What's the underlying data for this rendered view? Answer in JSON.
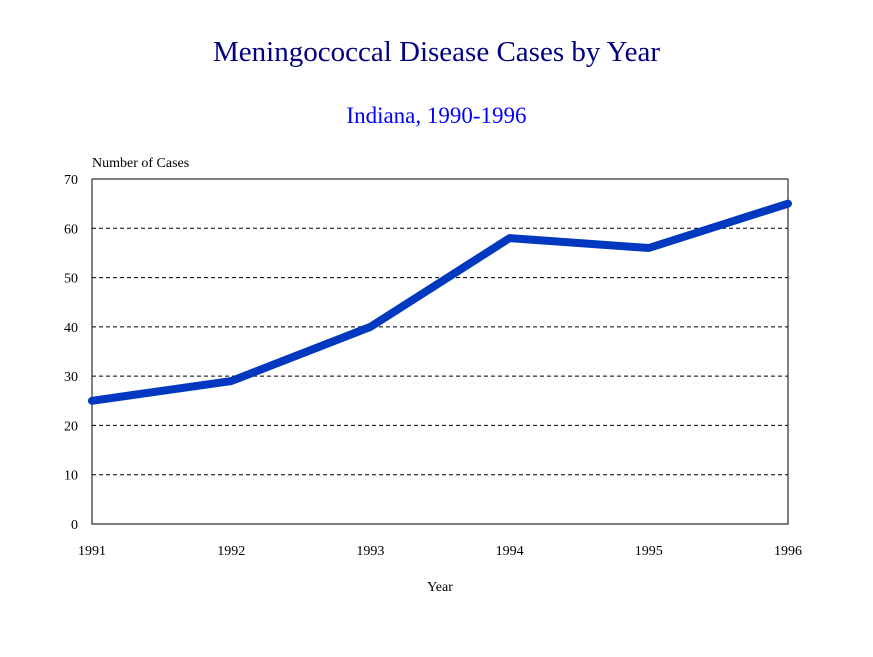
{
  "chart_data": {
    "type": "line",
    "title": "Meningococcal Disease Cases by Year",
    "subtitle": "Indiana, 1990-1996",
    "xlabel": "Year",
    "ylabel": "Number of Cases",
    "categories": [
      "1991",
      "1992",
      "1993",
      "1994",
      "1995",
      "1996"
    ],
    "series": [
      {
        "name": "Cases",
        "values": [
          25,
          29,
          40,
          58,
          56,
          65
        ],
        "color": "#0038c0"
      }
    ],
    "ylim": [
      0,
      70
    ],
    "yticks": [
      "0",
      "10",
      "20",
      "30",
      "40",
      "50",
      "60",
      "70"
    ],
    "grid": "horizontal dashed",
    "legend": "none"
  }
}
